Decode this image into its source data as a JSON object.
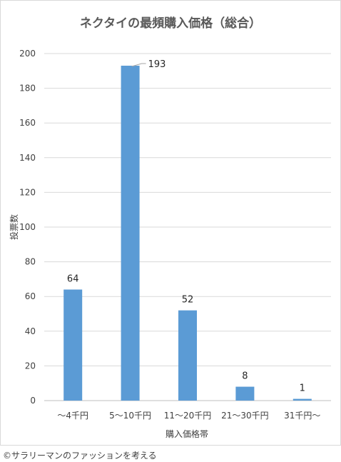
{
  "chart_data": {
    "type": "bar",
    "title": "ネクタイの最頻購入価格（総合）",
    "xlabel": "購入価格帯",
    "ylabel": "投票数",
    "categories": [
      "～4千円",
      "5～10千円",
      "11～20千円",
      "21～30千円",
      "31千円～"
    ],
    "values": [
      64,
      193,
      52,
      8,
      1
    ],
    "data_labels": [
      "64",
      "193",
      "52",
      "8",
      "1"
    ],
    "ylim": [
      0,
      200
    ],
    "yticks": [
      "0",
      "20",
      "40",
      "60",
      "80",
      "100",
      "120",
      "140",
      "160",
      "180",
      "200"
    ],
    "bar_color": "#5b9bd5",
    "grid": true,
    "legend": "none"
  },
  "credit": "©サラリーマンのファッションを考える"
}
